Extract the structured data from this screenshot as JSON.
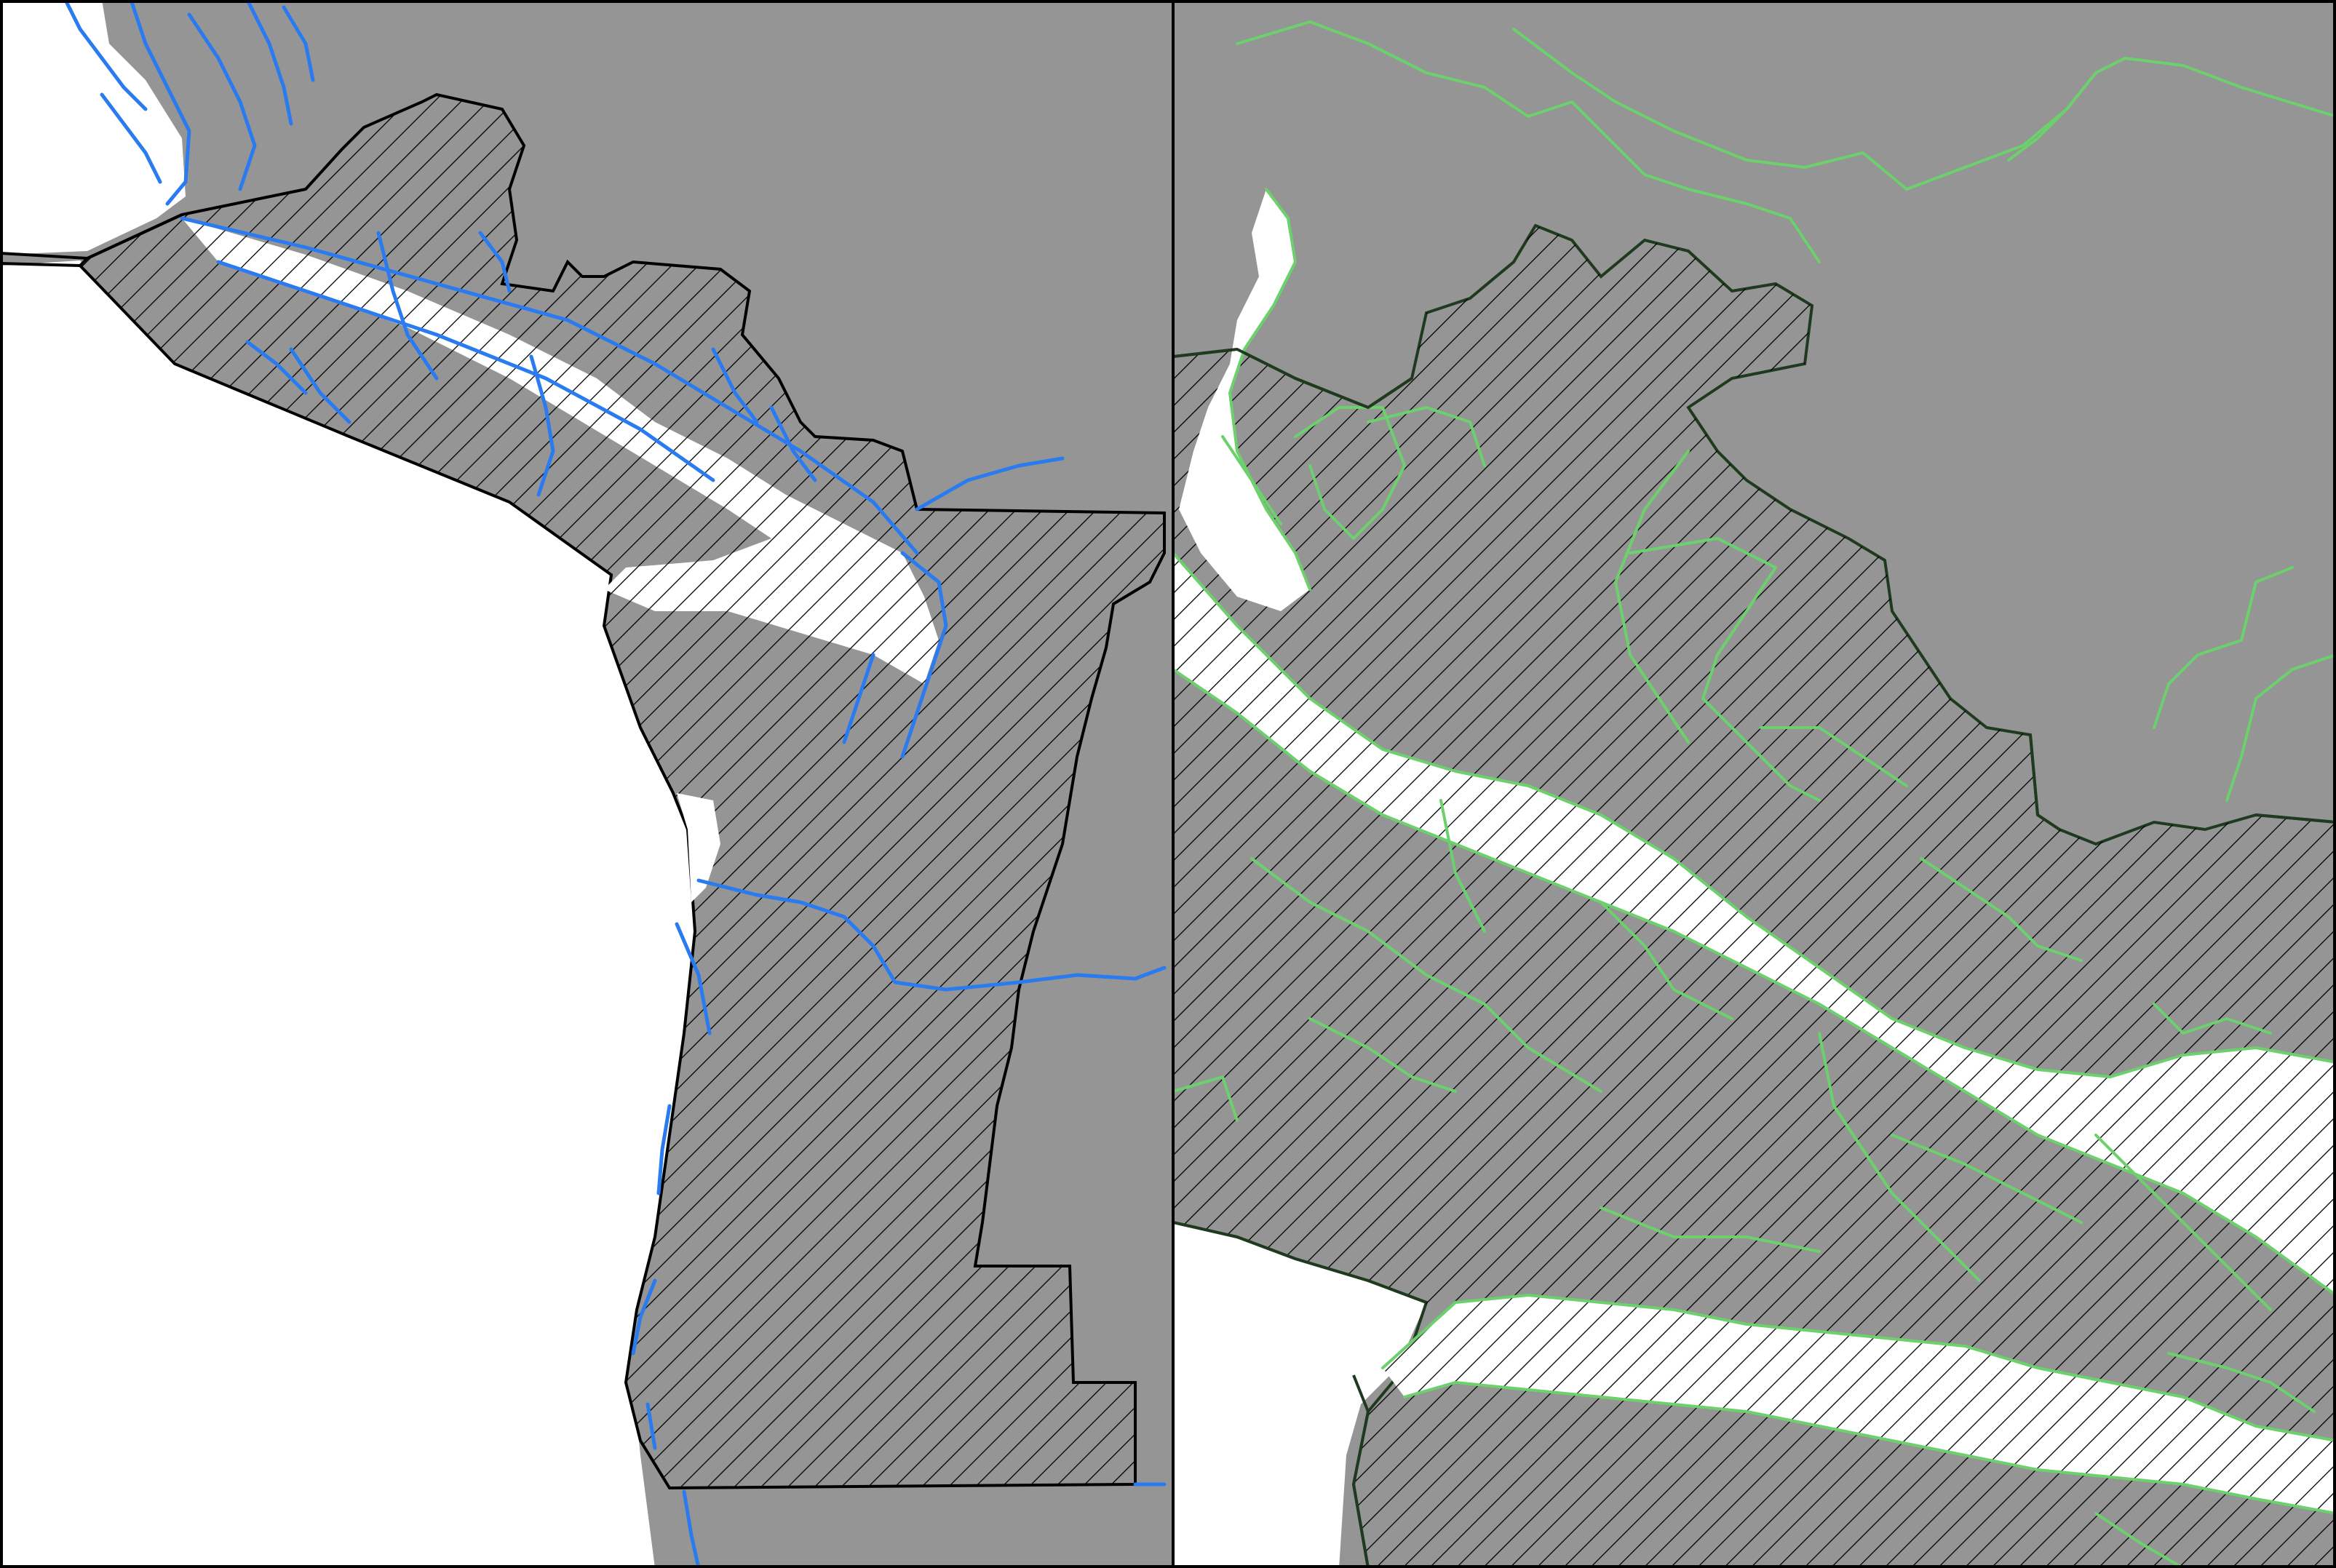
{
  "figure": {
    "panels": [
      {
        "id": "left",
        "description_visible": "",
        "water_color": "#2b7bf0",
        "boundary_color": "#000000"
      },
      {
        "id": "right",
        "description_visible": "",
        "water_color": "#6cd06c",
        "boundary_color": "#1f3a1f"
      }
    ],
    "colors": {
      "land": "#959595",
      "sea": "#ffffff",
      "hatch": "#000000",
      "frame": "#000000"
    }
  }
}
